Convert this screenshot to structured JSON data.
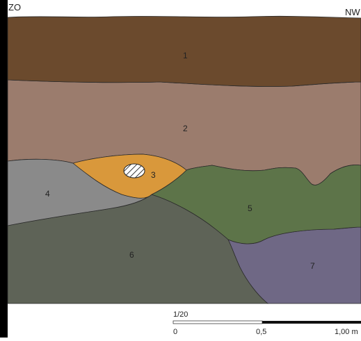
{
  "orientation": {
    "left": "ZO",
    "right": "NW"
  },
  "layers": [
    {
      "id": "1",
      "label": "1",
      "color": "#6b4a2d"
    },
    {
      "id": "2",
      "label": "2",
      "color": "#9b7c6d"
    },
    {
      "id": "3",
      "label": "3",
      "color": "#d9983b"
    },
    {
      "id": "4",
      "label": "4",
      "color": "#8a8a8a"
    },
    {
      "id": "5",
      "label": "5",
      "color": "#5d7449"
    },
    {
      "id": "6",
      "label": "6",
      "color": "#5e6357"
    },
    {
      "id": "7",
      "label": "7",
      "color": "#6f6885"
    }
  ],
  "inclusion": {
    "name": "hatched-inclusion",
    "color": "#ffffff"
  },
  "scale": {
    "ratio": "1/20",
    "ticks": [
      "0",
      "0,5",
      "1,00 m"
    ]
  },
  "colors": {
    "left_bar": "#000000",
    "outline": "#222222",
    "label_text": "#222222"
  }
}
